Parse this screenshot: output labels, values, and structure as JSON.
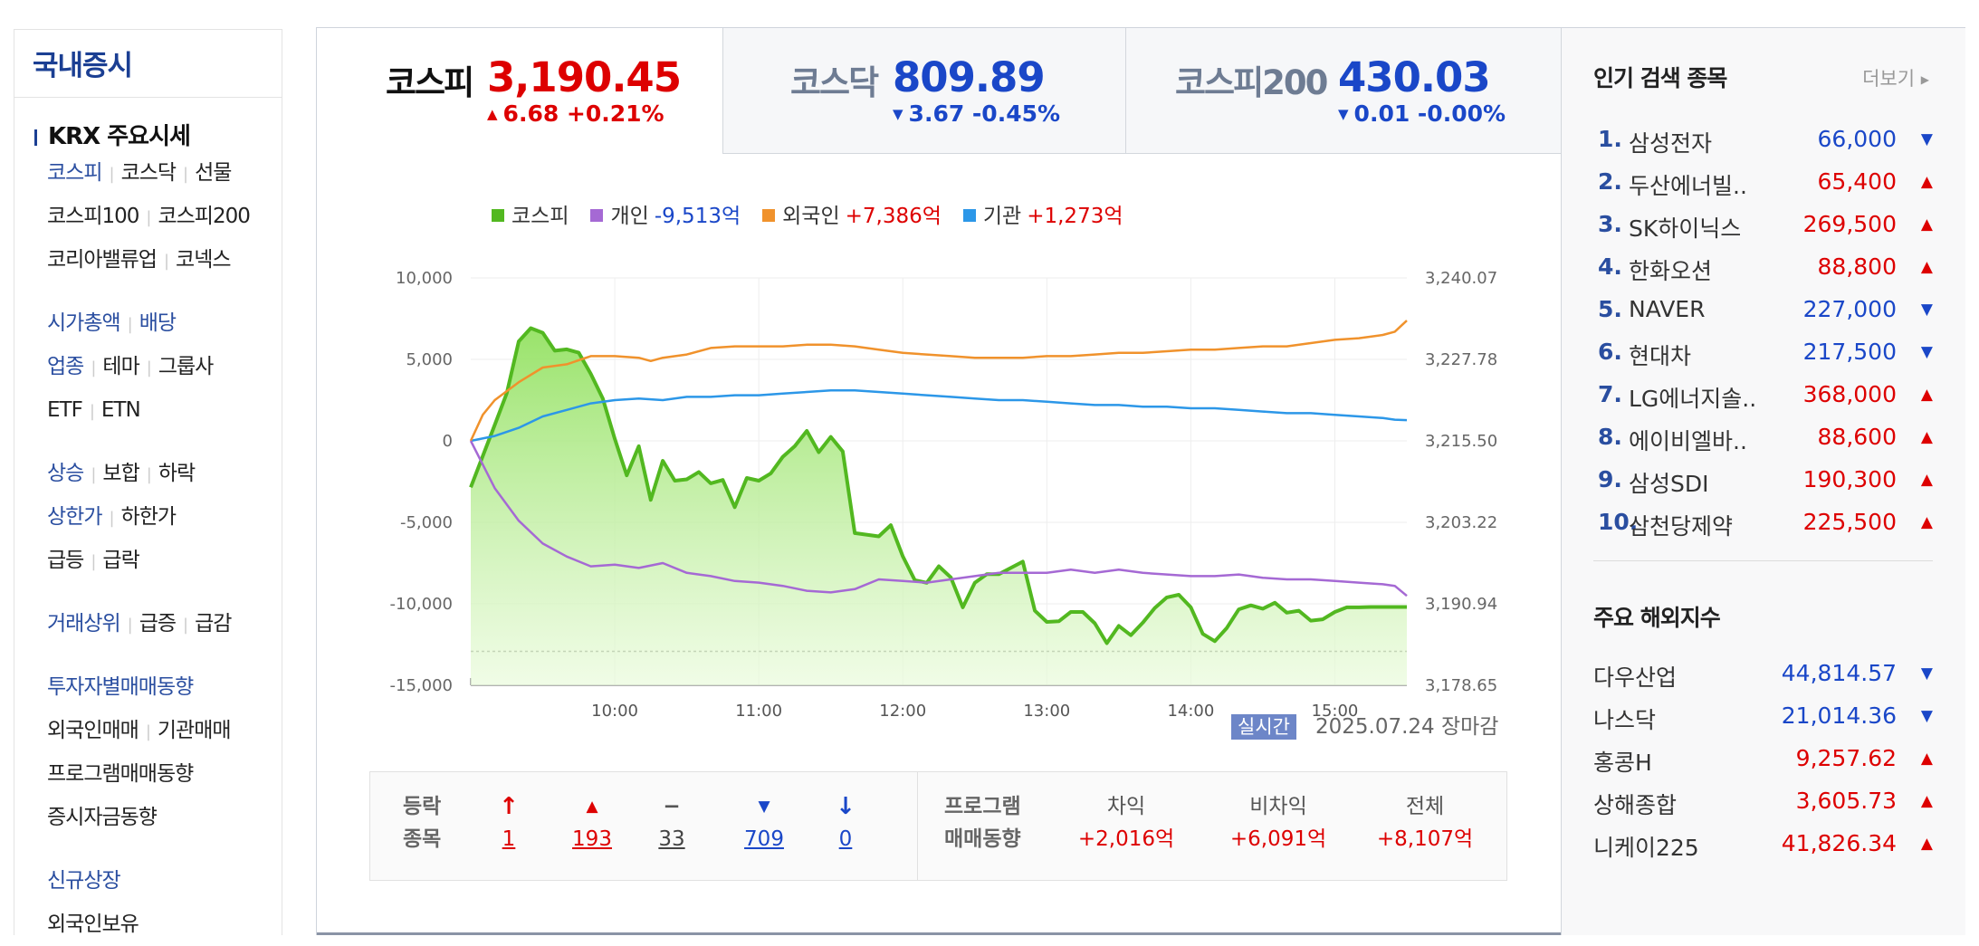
{
  "sidebar": {
    "title": "국내증시",
    "section_header": "KRX 주요시세",
    "rows": [
      [
        "코스피",
        "코스닥",
        "선물"
      ],
      [
        "코스피100",
        "코스피200"
      ],
      [
        "코리아밸류업",
        "코넥스"
      ],
      [],
      [
        "시가총액",
        "배당"
      ],
      [
        "업종",
        "테마",
        "그룹사"
      ],
      [
        "ETF",
        "ETN"
      ],
      [],
      [
        "상승",
        "보합",
        "하락"
      ],
      [
        "상한가",
        "하한가"
      ],
      [
        "급등",
        "급락"
      ],
      [],
      [
        "거래상위",
        "급증",
        "급감"
      ],
      [],
      [
        "투자자별매매동향"
      ],
      [
        "외국인매매",
        "기관매매"
      ],
      [
        "프로그램매매동향"
      ],
      [
        "증시자금동향"
      ],
      [],
      [
        "신규상장"
      ],
      [
        "외국인보유"
      ]
    ]
  },
  "tabs": [
    {
      "name": "코스피",
      "value": "3,190.45",
      "change": "6.68 +0.21%",
      "direction": "up"
    },
    {
      "name": "코스닥",
      "value": "809.89",
      "change": "3.67 -0.45%",
      "direction": "down"
    },
    {
      "name": "코스피200",
      "value": "430.03",
      "change": "0.01 -0.00%",
      "direction": "down"
    }
  ],
  "legend": [
    {
      "name": "코스피",
      "value": "",
      "color": "#52b820"
    },
    {
      "name": "개인",
      "value": "-9,513억",
      "color": "#a569d4",
      "direction": "down"
    },
    {
      "name": "외국인",
      "value": "+7,386억",
      "color": "#f0922c",
      "direction": "up"
    },
    {
      "name": "기관",
      "value": "+1,273억",
      "color": "#2c97e8",
      "direction": "up"
    }
  ],
  "chart_data": {
    "type": "line",
    "x_ticks": [
      "10:00",
      "11:00",
      "12:00",
      "13:00",
      "14:00",
      "15:00"
    ],
    "y_left_ticks": [
      "10,000",
      "5,000",
      "0",
      "-5,000",
      "-10,000",
      "-15,000"
    ],
    "y_left_range": [
      -15000,
      10000
    ],
    "y_right_ticks": [
      "3,240.07",
      "3,227.78",
      "3,215.50",
      "3,203.22",
      "3,190.94",
      "3,178.65"
    ],
    "y_right_range": [
      3178.65,
      3240.07
    ],
    "prev_close_reference": 3183.77,
    "time_range": [
      "09:00",
      "15:30"
    ],
    "series": [
      {
        "name": "코스피",
        "axis": "right",
        "color": "#52b820",
        "times": [
          "09:00",
          "09:10",
          "09:15",
          "09:20",
          "09:25",
          "09:30",
          "09:35",
          "09:40",
          "09:45",
          "09:50",
          "09:55",
          "10:00",
          "10:05",
          "10:10",
          "10:15",
          "10:20",
          "10:25",
          "10:30",
          "10:35",
          "10:40",
          "10:45",
          "10:50",
          "10:55",
          "11:00",
          "11:05",
          "11:10",
          "11:15",
          "11:20",
          "11:25",
          "11:30",
          "11:35",
          "11:40",
          "11:50",
          "11:55",
          "12:00",
          "12:05",
          "12:10",
          "12:15",
          "12:20",
          "12:25",
          "12:30",
          "12:35",
          "12:40",
          "12:50",
          "12:55",
          "13:00",
          "13:05",
          "13:10",
          "13:15",
          "13:20",
          "13:25",
          "13:30",
          "13:35",
          "13:40",
          "13:45",
          "13:50",
          "13:55",
          "14:00",
          "14:05",
          "14:10",
          "14:15",
          "14:20",
          "14:25",
          "14:30",
          "14:35",
          "14:40",
          "14:45",
          "14:50",
          "14:55",
          "15:00",
          "15:05",
          "15:10",
          "15:15",
          "15:20",
          "15:25",
          "15:30"
        ],
        "values": [
          3208.5,
          3217.9,
          3222.7,
          3230.5,
          3232.5,
          3231.8,
          3229.1,
          3229.3,
          3228.8,
          3225.6,
          3221.9,
          3215.8,
          3210.3,
          3214.7,
          3206.6,
          3212.5,
          3209.5,
          3209.7,
          3210.8,
          3209.1,
          3209.6,
          3205.5,
          3209.9,
          3209.5,
          3210.6,
          3213.1,
          3214.7,
          3217.0,
          3213.8,
          3216.1,
          3213.9,
          3201.6,
          3201.1,
          3202.8,
          3198.1,
          3194.5,
          3194.1,
          3196.6,
          3194.9,
          3190.4,
          3194.1,
          3195.4,
          3195.4,
          3197.3,
          3189.9,
          3188.2,
          3188.3,
          3189.7,
          3189.7,
          3188.0,
          3185.0,
          3187.6,
          3186.2,
          3188.1,
          3190.3,
          3191.9,
          3192.3,
          3190.4,
          3186.4,
          3185.3,
          3187.3,
          3190.1,
          3190.7,
          3190.2,
          3191.1,
          3189.6,
          3189.9,
          3188.4,
          3188.6,
          3189.7,
          3190.4,
          3190.4,
          3190.45,
          3190.45,
          3190.45,
          3190.45
        ]
      },
      {
        "name": "개인",
        "axis": "left",
        "color": "#a569d4",
        "times": [
          "09:00",
          "09:10",
          "09:20",
          "09:30",
          "09:40",
          "09:50",
          "10:00",
          "10:10",
          "10:20",
          "10:30",
          "10:40",
          "10:50",
          "11:00",
          "11:10",
          "11:20",
          "11:30",
          "11:40",
          "11:50",
          "12:00",
          "12:10",
          "12:20",
          "12:30",
          "12:40",
          "12:50",
          "13:00",
          "13:10",
          "13:20",
          "13:30",
          "13:40",
          "13:50",
          "14:00",
          "14:10",
          "14:20",
          "14:30",
          "14:40",
          "14:50",
          "15:00",
          "15:10",
          "15:20",
          "15:25",
          "15:30"
        ],
        "values": [
          0,
          -2900,
          -4900,
          -6300,
          -7100,
          -7700,
          -7600,
          -7800,
          -7500,
          -8100,
          -8300,
          -8600,
          -8700,
          -8900,
          -9200,
          -9300,
          -9100,
          -8500,
          -8600,
          -8700,
          -8500,
          -8300,
          -8100,
          -8100,
          -8100,
          -7900,
          -8100,
          -7900,
          -8100,
          -8200,
          -8300,
          -8300,
          -8200,
          -8400,
          -8500,
          -8500,
          -8600,
          -8700,
          -8800,
          -8900,
          -9513
        ]
      },
      {
        "name": "외국인",
        "axis": "left",
        "color": "#f0922c",
        "times": [
          "09:00",
          "09:05",
          "09:10",
          "09:20",
          "09:30",
          "09:40",
          "09:50",
          "10:00",
          "10:10",
          "10:15",
          "10:20",
          "10:30",
          "10:40",
          "10:50",
          "11:00",
          "11:10",
          "11:20",
          "11:30",
          "11:40",
          "11:50",
          "12:00",
          "12:10",
          "12:20",
          "12:30",
          "12:40",
          "12:50",
          "13:00",
          "13:10",
          "13:20",
          "13:30",
          "13:40",
          "13:50",
          "14:00",
          "14:10",
          "14:20",
          "14:30",
          "14:40",
          "14:50",
          "15:00",
          "15:10",
          "15:20",
          "15:25",
          "15:30"
        ],
        "values": [
          0,
          1600,
          2500,
          3600,
          4500,
          4700,
          5200,
          5200,
          5100,
          4900,
          5100,
          5300,
          5700,
          5800,
          5800,
          5800,
          5900,
          5900,
          5800,
          5600,
          5400,
          5300,
          5200,
          5100,
          5100,
          5100,
          5200,
          5200,
          5300,
          5400,
          5400,
          5500,
          5600,
          5600,
          5700,
          5800,
          5800,
          6000,
          6200,
          6300,
          6500,
          6700,
          7386
        ]
      },
      {
        "name": "기관",
        "axis": "left",
        "color": "#2c97e8",
        "times": [
          "09:00",
          "09:10",
          "09:20",
          "09:30",
          "09:40",
          "09:50",
          "10:00",
          "10:10",
          "10:20",
          "10:30",
          "10:40",
          "10:50",
          "11:00",
          "11:10",
          "11:20",
          "11:30",
          "11:40",
          "11:50",
          "12:00",
          "12:10",
          "12:20",
          "12:30",
          "12:40",
          "12:50",
          "13:00",
          "13:10",
          "13:20",
          "13:30",
          "13:40",
          "13:50",
          "14:00",
          "14:10",
          "14:20",
          "14:30",
          "14:40",
          "14:50",
          "15:00",
          "15:10",
          "15:20",
          "15:25",
          "15:30"
        ],
        "values": [
          0,
          300,
          800,
          1500,
          1900,
          2300,
          2500,
          2600,
          2500,
          2700,
          2700,
          2800,
          2800,
          2900,
          3000,
          3100,
          3100,
          3000,
          2900,
          2800,
          2700,
          2600,
          2500,
          2500,
          2400,
          2300,
          2200,
          2200,
          2100,
          2100,
          2000,
          2000,
          1900,
          1800,
          1700,
          1700,
          1600,
          1500,
          1400,
          1300,
          1273
        ]
      }
    ]
  },
  "realtime": {
    "badge": "실시간",
    "date": "2025.07.24 장마감"
  },
  "stats": {
    "label_line1": "등락",
    "label_line2": "종목",
    "arrows": {
      "upper_limit": "↑",
      "up": "▲",
      "flat": "−",
      "down": "▼",
      "lower_limit": "↓"
    },
    "counts": {
      "upper_limit": "1",
      "up": "193",
      "flat": "33",
      "down": "709",
      "lower_limit": "0"
    },
    "program_line1": "프로그램",
    "program_line2": "매매동향",
    "program": [
      {
        "label": "차익",
        "value": "+2,016억"
      },
      {
        "label": "비차익",
        "value": "+6,091억"
      },
      {
        "label": "전체",
        "value": "+8,107억"
      }
    ]
  },
  "popular": {
    "title": "인기 검색 종목",
    "more": "더보기",
    "items": [
      {
        "rank": "1.",
        "name": "삼성전자",
        "price": "66,000",
        "direction": "down"
      },
      {
        "rank": "2.",
        "name": "두산에너빌..",
        "price": "65,400",
        "direction": "up"
      },
      {
        "rank": "3.",
        "name": "SK하이닉스",
        "price": "269,500",
        "direction": "up"
      },
      {
        "rank": "4.",
        "name": "한화오션",
        "price": "88,800",
        "direction": "up"
      },
      {
        "rank": "5.",
        "name": "NAVER",
        "price": "227,000",
        "direction": "down"
      },
      {
        "rank": "6.",
        "name": "현대차",
        "price": "217,500",
        "direction": "down"
      },
      {
        "rank": "7.",
        "name": "LG에너지솔..",
        "price": "368,000",
        "direction": "up"
      },
      {
        "rank": "8.",
        "name": "에이비엘바..",
        "price": "88,600",
        "direction": "up"
      },
      {
        "rank": "9.",
        "name": "삼성SDI",
        "price": "190,300",
        "direction": "up"
      },
      {
        "rank": "10.",
        "name": "삼천당제약",
        "price": "225,500",
        "direction": "up"
      }
    ]
  },
  "overseas": {
    "title": "주요 해외지수",
    "items": [
      {
        "name": "다우산업",
        "value": "44,814.57",
        "direction": "down"
      },
      {
        "name": "나스닥",
        "value": "21,014.36",
        "direction": "down"
      },
      {
        "name": "홍콩H",
        "value": "9,257.62",
        "direction": "up"
      },
      {
        "name": "상해종합",
        "value": "3,605.73",
        "direction": "up"
      },
      {
        "name": "니케이225",
        "value": "41,826.34",
        "direction": "up"
      }
    ]
  }
}
